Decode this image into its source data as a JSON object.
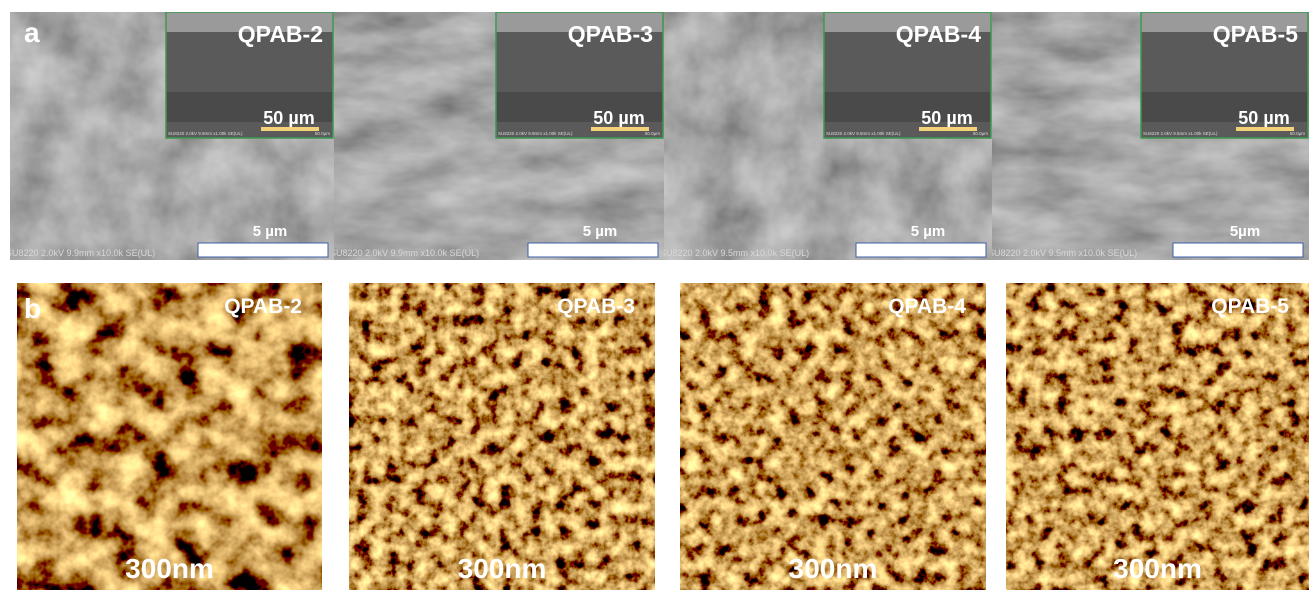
{
  "panels": {
    "a": {
      "label": "a",
      "images": [
        {
          "title": "QPAB-2",
          "inset_scale": "50 µm",
          "inset_info": "SU8220 2.0kV 9.9mm x1.00k SE(UL)",
          "inset_field": "50.0µm",
          "scale": "5 µm",
          "info": "SU8220 2.0kV 9.9mm x10.0k SE(UL)"
        },
        {
          "title": "QPAB-3",
          "inset_scale": "50 µm",
          "inset_info": "SU8220 2.0kV 9.9mm x1.00k SE(UL)",
          "inset_field": "50.0µm",
          "scale": "5 µm",
          "info": "SU8220 2.0kV 9.9mm x10.0k SE(UL)"
        },
        {
          "title": "QPAB-4",
          "inset_scale": "50 µm",
          "inset_info": "SU8220 2.0kV 9.5mm x1.00k SE(UL)",
          "inset_field": "50.0µm",
          "scale": "5 µm",
          "info": "SU8220 2.0kV 9.5mm x10.0k SE(UL)"
        },
        {
          "title": "QPAB-5",
          "inset_scale": "50 µm",
          "inset_info": "SU8220 2.0kV 9.5mm x1.00k SE(UL)",
          "inset_field": "50.0µm",
          "scale": "5µm",
          "info": "SU8220 2.0kV 9.5mm x10.0k SE(UL)"
        }
      ]
    },
    "b": {
      "label": "b",
      "images": [
        {
          "title": "QPAB-2",
          "scale": "300nm"
        },
        {
          "title": "QPAB-3",
          "scale": "300nm"
        },
        {
          "title": "QPAB-4",
          "scale": "300nm"
        },
        {
          "title": "QPAB-5",
          "scale": "300nm"
        }
      ]
    }
  }
}
